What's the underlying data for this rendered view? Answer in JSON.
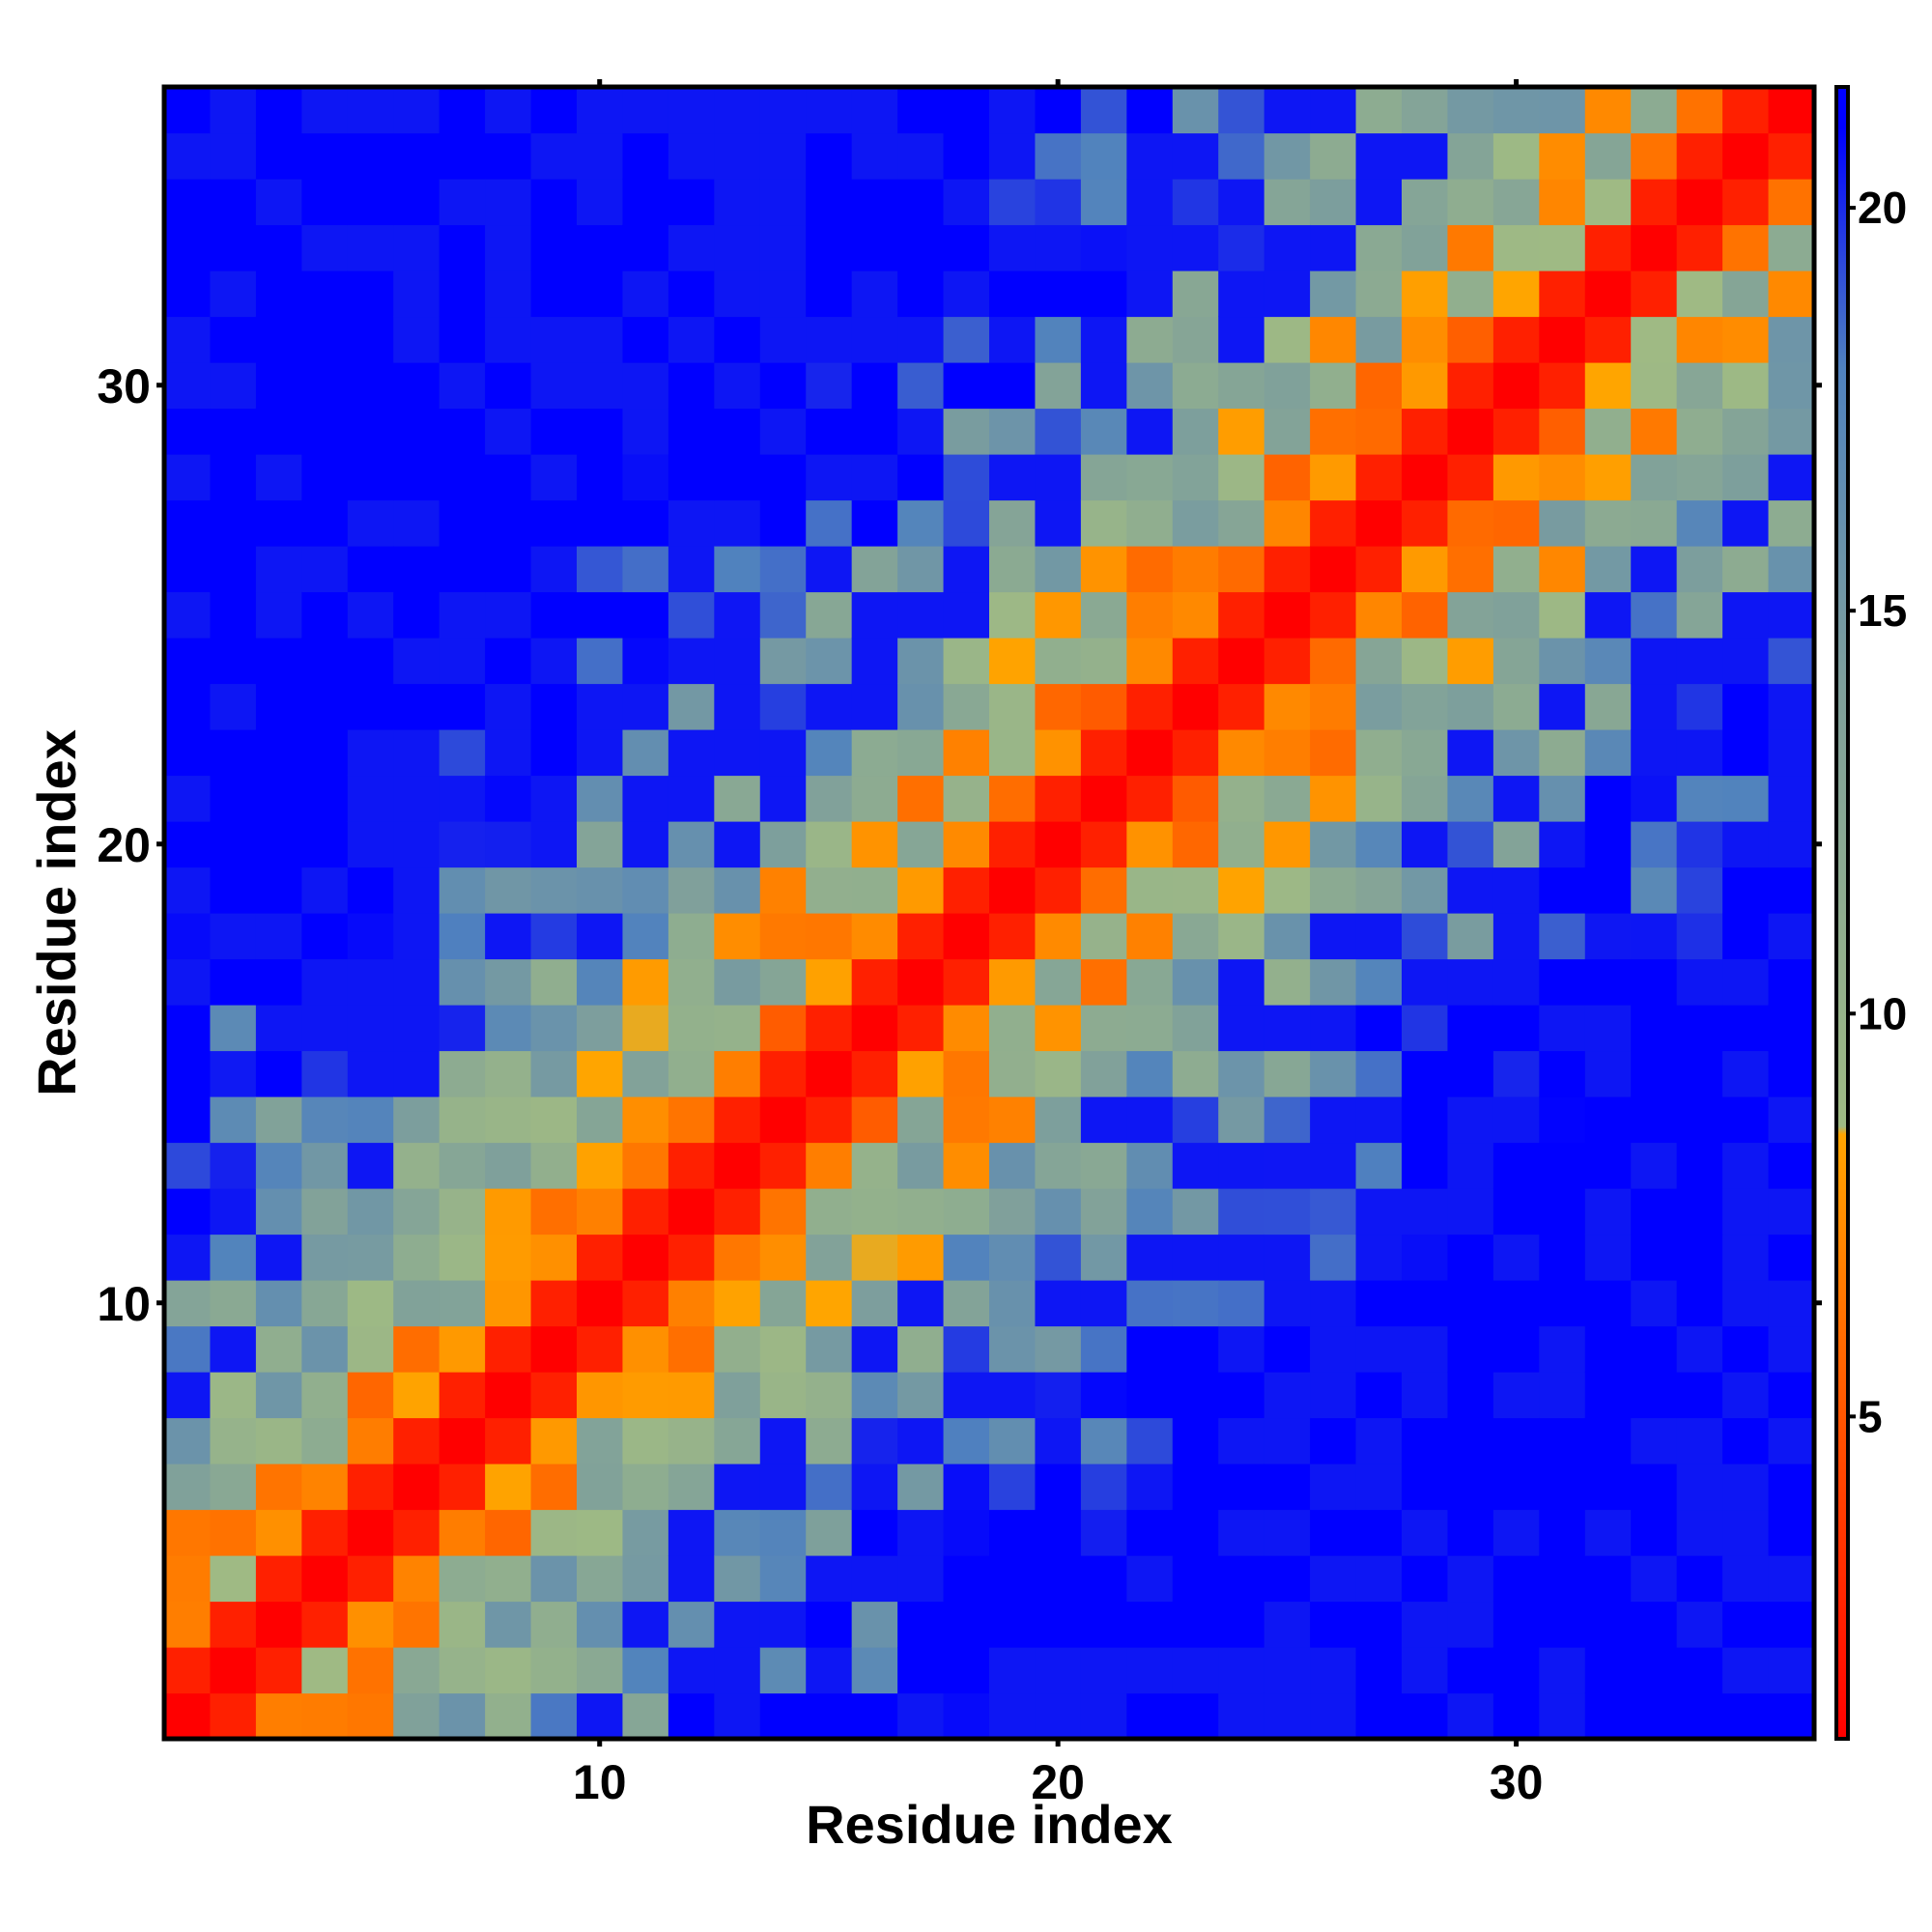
{
  "chart_data": {
    "type": "heatmap",
    "title": "",
    "xlabel": "Residue index",
    "ylabel": "Residue index",
    "n": 36,
    "xlim": [
      0.5,
      36.5
    ],
    "ylim": [
      0.5,
      36.5
    ],
    "x_ticks": [
      10,
      20,
      30
    ],
    "y_ticks": [
      10,
      20,
      30
    ],
    "colorbar": {
      "min": 1,
      "max": 21.5,
      "ticks": [
        5,
        10,
        15,
        20
      ],
      "legend_placement": "right",
      "stops": [
        {
          "value": 1,
          "color": "#ff0000"
        },
        {
          "value": 5.5,
          "color": "#ff6000"
        },
        {
          "value": 8.5,
          "color": "#ffa500"
        },
        {
          "value": 8.6,
          "color": "#9fba84"
        },
        {
          "value": 14,
          "color": "#7fa09b"
        },
        {
          "value": 18,
          "color": "#5082be"
        },
        {
          "value": 21,
          "color": "#0000ff"
        }
      ]
    },
    "matrix_note": "symmetric residue-residue distance matrix; z values reconstructed by the page script",
    "grid": false
  }
}
